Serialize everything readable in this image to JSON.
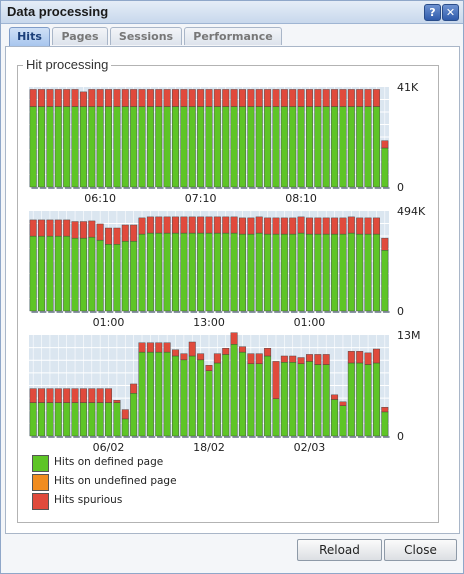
{
  "window": {
    "title": "Data processing"
  },
  "titlebar": {
    "help_icon_glyph": "?",
    "close_icon_glyph": "✕",
    "help_icon": "help-icon",
    "close_icon": "close-icon"
  },
  "tabs": [
    {
      "label": "Hits",
      "active": true
    },
    {
      "label": "Pages",
      "active": false
    },
    {
      "label": "Sessions",
      "active": false
    },
    {
      "label": "Performance",
      "active": false
    }
  ],
  "group": {
    "label": "Hit processing"
  },
  "colors": {
    "defined": "#5ec526",
    "undefined": "#f08c1f",
    "spurious": "#e04a3c",
    "chart_bg": "#dbe6f0",
    "grid": "#ffffff"
  },
  "legend": [
    {
      "key": "defined",
      "label": "Hits on defined page"
    },
    {
      "key": "undefined",
      "label": "Hits on undefined page"
    },
    {
      "key": "spurious",
      "label": "Hits spurious"
    }
  ],
  "chart_data": [
    {
      "type": "bar",
      "stacked": true,
      "ymax_label": "41K",
      "ymin_label": "0",
      "ylim": [
        0,
        41
      ],
      "x_ticks": [
        {
          "label": "06:10",
          "index": 8
        },
        {
          "label": "07:10",
          "index": 20
        },
        {
          "label": "08:10",
          "index": 32
        }
      ],
      "series": [
        {
          "name": "Hits on defined page",
          "key": "defined",
          "values": [
            33,
            33,
            33,
            33,
            33,
            33,
            33,
            33,
            33,
            33,
            33,
            33,
            33,
            33,
            33,
            33,
            33,
            33,
            33,
            33,
            33,
            33,
            33,
            33,
            33,
            33,
            33,
            33,
            33,
            33,
            33,
            33,
            33,
            33,
            33,
            33,
            33,
            33,
            33,
            33,
            33,
            33,
            16
          ]
        },
        {
          "name": "Hits spurious",
          "key": "spurious",
          "values": [
            7,
            7,
            7,
            7,
            7,
            7,
            6,
            7,
            7,
            7,
            7,
            7,
            7,
            7,
            7,
            7,
            7,
            7,
            7,
            7,
            7,
            7,
            7,
            7,
            7,
            7,
            7,
            7,
            7,
            7,
            7,
            7,
            7,
            7,
            7,
            7,
            7,
            7,
            7,
            7,
            7,
            7,
            3
          ]
        }
      ]
    },
    {
      "type": "bar",
      "stacked": true,
      "ymax_label": "494K",
      "ymin_label": "0",
      "ylim": [
        0,
        494
      ],
      "x_ticks": [
        {
          "label": "01:00",
          "index": 9
        },
        {
          "label": "13:00",
          "index": 21
        },
        {
          "label": "01:00",
          "index": 33
        }
      ],
      "series": [
        {
          "name": "Hits on defined page",
          "key": "defined",
          "values": [
            370,
            370,
            370,
            370,
            370,
            360,
            360,
            365,
            350,
            330,
            330,
            345,
            345,
            380,
            385,
            385,
            385,
            385,
            385,
            385,
            385,
            385,
            385,
            385,
            385,
            380,
            380,
            385,
            380,
            380,
            380,
            380,
            385,
            380,
            380,
            380,
            380,
            380,
            385,
            380,
            380,
            380,
            300
          ]
        },
        {
          "name": "Hits spurious",
          "key": "spurious",
          "values": [
            80,
            80,
            80,
            80,
            80,
            82,
            82,
            80,
            80,
            80,
            80,
            80,
            80,
            80,
            80,
            80,
            80,
            80,
            80,
            80,
            80,
            80,
            80,
            80,
            80,
            80,
            80,
            80,
            80,
            80,
            80,
            80,
            80,
            80,
            80,
            80,
            80,
            80,
            80,
            80,
            80,
            80,
            60
          ]
        }
      ]
    },
    {
      "type": "bar",
      "stacked": true,
      "ymax_label": "13M",
      "ymin_label": "0",
      "ylim": [
        0,
        13
      ],
      "x_ticks": [
        {
          "label": "06/02",
          "index": 9
        },
        {
          "label": "18/02",
          "index": 21
        },
        {
          "label": "02/03",
          "index": 33
        }
      ],
      "series": [
        {
          "name": "Hits on defined page",
          "key": "defined",
          "values": [
            4.3,
            4.3,
            4.3,
            4.3,
            4.3,
            4.3,
            4.3,
            4.3,
            4.3,
            4.3,
            4.3,
            2.2,
            5.5,
            10.8,
            10.8,
            10.8,
            10.8,
            10.3,
            9.8,
            10.3,
            9.8,
            8.4,
            9.4,
            10.5,
            11.8,
            10.8,
            9.3,
            9.3,
            10.3,
            4.8,
            9.5,
            9.5,
            9.3,
            9.6,
            9.2,
            9.2,
            4.7,
            3.9,
            9.4,
            9.4,
            9.2,
            9.4,
            3.1
          ]
        },
        {
          "name": "Hits spurious",
          "key": "spurious",
          "values": [
            1.8,
            1.8,
            1.8,
            1.8,
            1.8,
            1.8,
            1.8,
            1.8,
            1.8,
            1.8,
            0.3,
            1.2,
            1.2,
            1.2,
            1.2,
            1.2,
            1.2,
            0.8,
            0.8,
            1.8,
            0.8,
            0.7,
            1.2,
            0.8,
            1.5,
            0.7,
            1.3,
            1.3,
            1.0,
            4.8,
            0.8,
            0.8,
            0.8,
            0.9,
            1.3,
            1.3,
            0.6,
            0.5,
            1.5,
            1.5,
            1.5,
            1.8,
            0.6
          ]
        }
      ]
    }
  ],
  "buttons": {
    "reload": "Reload",
    "close": "Close"
  }
}
